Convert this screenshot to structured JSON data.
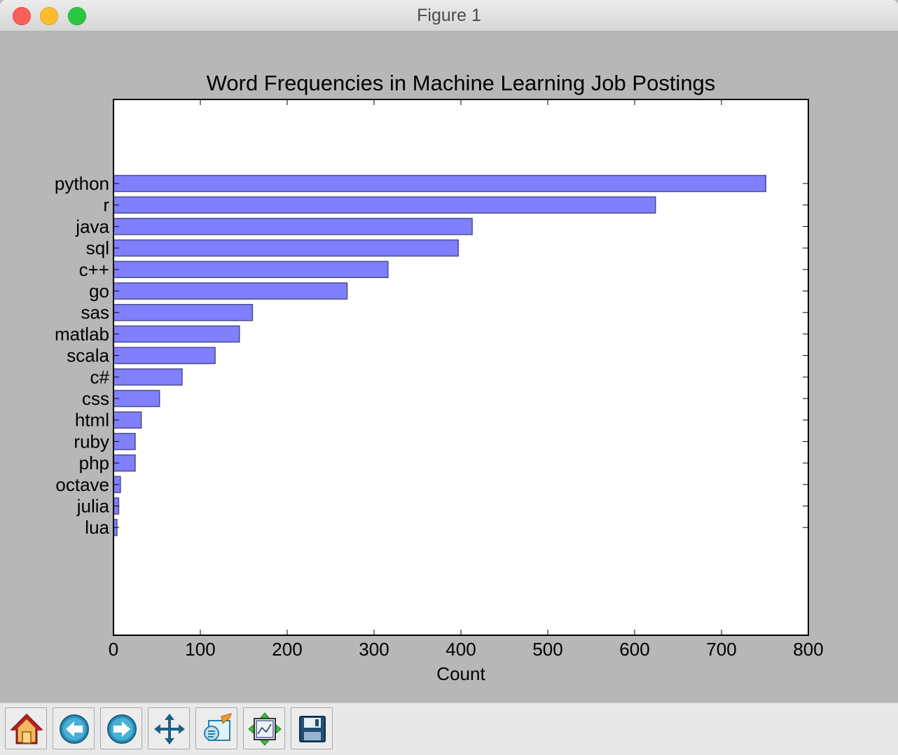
{
  "window": {
    "title": "Figure 1"
  },
  "toolbar": {
    "buttons": [
      {
        "name": "home",
        "icon": "home-icon"
      },
      {
        "name": "back",
        "icon": "back-arrow-icon"
      },
      {
        "name": "forward",
        "icon": "forward-arrow-icon"
      },
      {
        "name": "pan",
        "icon": "move-arrows-icon"
      },
      {
        "name": "zoom",
        "icon": "zoom-rect-icon"
      },
      {
        "name": "subplots",
        "icon": "subplots-config-icon"
      },
      {
        "name": "save",
        "icon": "floppy-disk-icon"
      }
    ]
  },
  "colors": {
    "bar_fill": "#8080ff",
    "bar_edge": "#4a4a8f",
    "figure_bg": "#b7b7b7",
    "axes_bg": "#ffffff"
  },
  "chart_data": {
    "type": "bar",
    "orientation": "horizontal",
    "title": "Word Frequencies in Machine Learning Job Postings",
    "xlabel": "Count",
    "ylabel": "",
    "xlim": [
      0,
      800
    ],
    "xticks": [
      0,
      100,
      200,
      300,
      400,
      500,
      600,
      700,
      800
    ],
    "categories": [
      "python",
      "r",
      "java",
      "sql",
      "c++",
      "go",
      "sas",
      "matlab",
      "scala",
      "c#",
      "css",
      "html",
      "ruby",
      "php",
      "octave",
      "julia",
      "lua"
    ],
    "values": [
      751,
      624,
      413,
      397,
      316,
      269,
      160,
      145,
      117,
      79,
      53,
      32,
      25,
      25,
      8,
      6,
      4
    ],
    "grid": false,
    "legend": "none"
  }
}
